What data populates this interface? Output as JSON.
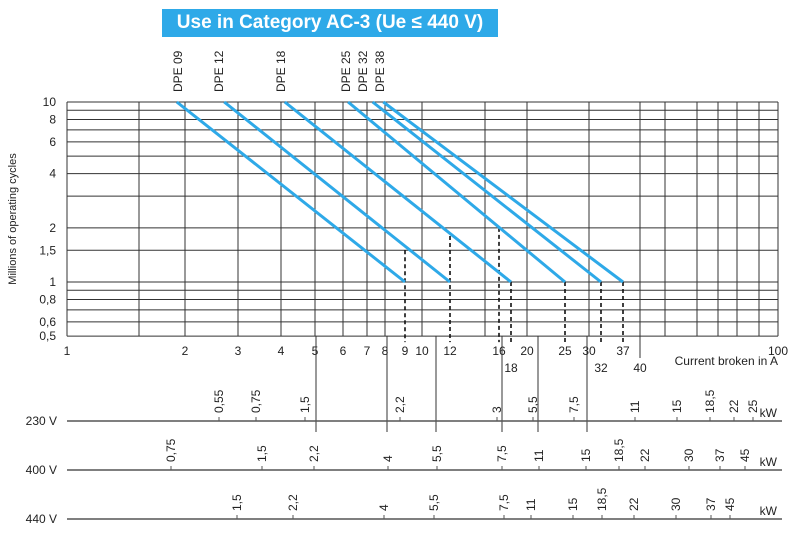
{
  "chart_data": {
    "type": "line",
    "title": "Use in Category AC-3 (Ue ≤ 440 V)",
    "xlabel": "Current broken in A",
    "ylabel": "Millions of operating cycles",
    "x_scale": "log",
    "y_scale": "log",
    "xlim": [
      1,
      100
    ],
    "ylim": [
      0.5,
      10
    ],
    "grid": true,
    "line_color": "#2ea9e8",
    "x_tick_labels": [
      "1",
      "2",
      "3",
      "4",
      "5",
      "6",
      "7",
      "8",
      "9",
      "10",
      "12",
      "16",
      "20",
      "25",
      "30",
      "37",
      "100"
    ],
    "x_tick_labels_lower": [
      "18",
      "32",
      "40"
    ],
    "y_tick_labels": [
      "10",
      "8",
      "6",
      "4",
      "2",
      "1,5",
      "1",
      "0,8",
      "0,6",
      "0,5"
    ],
    "series": [
      {
        "name": "DPE 09",
        "x": [
          1.9,
          9
        ],
        "y": [
          10,
          1
        ]
      },
      {
        "name": "DPE 12",
        "x": [
          2.7,
          12
        ],
        "y": [
          10,
          1
        ]
      },
      {
        "name": "DPE 18",
        "x": [
          4.1,
          18
        ],
        "y": [
          10,
          1
        ]
      },
      {
        "name": "DPE 25",
        "x": [
          6.2,
          25
        ],
        "y": [
          10,
          1
        ]
      },
      {
        "name": "DPE 32",
        "x": [
          7.3,
          32
        ],
        "y": [
          10,
          1
        ]
      },
      {
        "name": "DPE 38",
        "x": [
          7.9,
          37
        ],
        "y": [
          10,
          1
        ]
      }
    ],
    "dashed_markers": [
      {
        "x": 9,
        "y_from": 1.5
      },
      {
        "x": 12,
        "y_from": 1.8
      },
      {
        "x": 16,
        "y_from": 2
      },
      {
        "x": 18,
        "y_from": 1
      },
      {
        "x": 25,
        "y_from": 1
      },
      {
        "x": 32,
        "y_from": 1
      },
      {
        "x": 37,
        "y_from": 1
      }
    ],
    "power_scales": [
      {
        "voltage": "230 V",
        "unit": "kW",
        "values": [
          "0,55",
          "0,75",
          "1,5",
          "2,2",
          "3",
          "5,5",
          "7,5",
          "11",
          "15",
          "18,5",
          "22",
          "25"
        ]
      },
      {
        "voltage": "400 V",
        "unit": "kW",
        "values": [
          "0,75",
          "1,5",
          "2,2",
          "4",
          "5,5",
          "7,5",
          "11",
          "15",
          "18,5",
          "22",
          "30",
          "37",
          "45"
        ]
      },
      {
        "voltage": "440 V",
        "unit": "kW",
        "values": [
          "1,5",
          "2,2",
          "4",
          "5,5",
          "7,5",
          "11",
          "15",
          "18,5",
          "22",
          "30",
          "37",
          "45"
        ]
      }
    ]
  }
}
